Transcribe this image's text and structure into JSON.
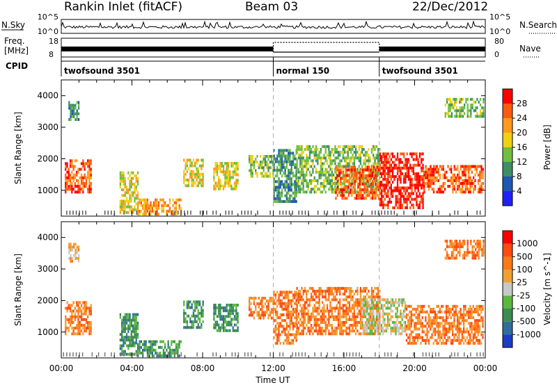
{
  "header": {
    "title": "Rankin Inlet (fitACF)",
    "beam": "Beam 03",
    "date": "22/Dec/2012"
  },
  "top_panels": {
    "nsky_label": "N.Sky",
    "nsky_ticks": [
      "10^5",
      "10^0"
    ],
    "nsearch_label": "N.Search",
    "nsearch_ticks": [
      "10^5",
      "10^0"
    ],
    "freq_label_1": "Freq.",
    "freq_label_2": "[MHz]",
    "freq_ticks": [
      "18",
      "8"
    ],
    "nave_label": "Nave",
    "nave_ticks": [
      "80",
      "0"
    ],
    "cpid_label": "CPID",
    "cpid_segments": [
      {
        "label": "twofsound 3501",
        "start_h": 0,
        "end_h": 12
      },
      {
        "label": "normal 150",
        "start_h": 12,
        "end_h": 18
      },
      {
        "label": "twofsound 3501",
        "start_h": 18,
        "end_h": 24
      }
    ]
  },
  "chart_data": [
    {
      "type": "heatmap",
      "name": "power",
      "ylabel": "Slant Range [km]",
      "ylim": [
        180,
        4500
      ],
      "yticks": [
        1000,
        2000,
        3000,
        4000
      ],
      "xlim": [
        0,
        24
      ],
      "colorbar_label": "Power [dB]",
      "colorbar_ticks": [
        "4",
        "8",
        "12",
        "16",
        "20",
        "24",
        "28"
      ],
      "colors": [
        "#2020ff",
        "#1e58b4",
        "#3f8f64",
        "#6fbf3f",
        "#f0d010",
        "#ff9a1a",
        "#ff5a10",
        "#ff0000"
      ],
      "regions": [
        {
          "t0": 0.2,
          "t1": 1.7,
          "r0": 900,
          "r1": 1900,
          "level": 6
        },
        {
          "t0": 0.4,
          "t1": 1.0,
          "r0": 3200,
          "r1": 3800,
          "level": 2
        },
        {
          "t0": 3.3,
          "t1": 4.3,
          "r0": 250,
          "r1": 1600,
          "level": 4
        },
        {
          "t0": 4.3,
          "t1": 6.8,
          "r0": 200,
          "r1": 700,
          "level": 5
        },
        {
          "t0": 6.9,
          "t1": 8.0,
          "r0": 1100,
          "r1": 2000,
          "level": 4
        },
        {
          "t0": 8.6,
          "t1": 10.0,
          "r0": 1000,
          "r1": 1900,
          "level": 4
        },
        {
          "t0": 10.6,
          "t1": 12.0,
          "r0": 1400,
          "r1": 2100,
          "level": 3
        },
        {
          "t0": 12.0,
          "t1": 13.3,
          "r0": 600,
          "r1": 2300,
          "level": 2
        },
        {
          "t0": 13.3,
          "t1": 18.0,
          "r0": 900,
          "r1": 2400,
          "level": 3
        },
        {
          "t0": 15.5,
          "t1": 18.0,
          "r0": 700,
          "r1": 1700,
          "level": 6
        },
        {
          "t0": 18.0,
          "t1": 20.5,
          "r0": 400,
          "r1": 2200,
          "level": 7
        },
        {
          "t0": 20.5,
          "t1": 23.9,
          "r0": 900,
          "r1": 1800,
          "level": 6
        },
        {
          "t0": 21.7,
          "t1": 23.9,
          "r0": 3300,
          "r1": 3900,
          "level": 3
        }
      ]
    },
    {
      "type": "heatmap",
      "name": "velocity",
      "ylabel": "Slant Range [km]",
      "ylim": [
        180,
        4500
      ],
      "yticks": [
        1000,
        2000,
        3000,
        4000
      ],
      "xlim": [
        0,
        24
      ],
      "xticks": [
        "00:00",
        "04:00",
        "08:00",
        "12:00",
        "16:00",
        "20:00",
        "00:00"
      ],
      "xlabel": "Time UT",
      "colorbar_label": "Velocity [m s^-1]",
      "colorbar_ticks": [
        "1000",
        "500",
        "100",
        "25",
        "-25",
        "-100",
        "-500",
        "-1000"
      ],
      "colors": [
        "#1c3cc8",
        "#2f6e9a",
        "#3c8c50",
        "#5ab93c",
        "#c8c8c8",
        "#f0a030",
        "#ff7818",
        "#ff4a10",
        "#ff0000"
      ],
      "regions": [
        {
          "t0": 0.2,
          "t1": 1.7,
          "r0": 900,
          "r1": 1900,
          "level": 6
        },
        {
          "t0": 0.4,
          "t1": 1.0,
          "r0": 3200,
          "r1": 3800,
          "level": 5
        },
        {
          "t0": 3.3,
          "t1": 4.3,
          "r0": 250,
          "r1": 1600,
          "level": 2
        },
        {
          "t0": 4.3,
          "t1": 6.8,
          "r0": 200,
          "r1": 700,
          "level": 2
        },
        {
          "t0": 6.9,
          "t1": 8.0,
          "r0": 1100,
          "r1": 2000,
          "level": 2
        },
        {
          "t0": 8.6,
          "t1": 10.0,
          "r0": 1000,
          "r1": 1900,
          "level": 2
        },
        {
          "t0": 10.6,
          "t1": 12.0,
          "r0": 1400,
          "r1": 2100,
          "level": 6
        },
        {
          "t0": 12.0,
          "t1": 13.3,
          "r0": 600,
          "r1": 2300,
          "level": 6
        },
        {
          "t0": 13.3,
          "t1": 18.0,
          "r0": 900,
          "r1": 2400,
          "level": 6
        },
        {
          "t0": 17.0,
          "t1": 19.5,
          "r0": 900,
          "r1": 2000,
          "level": 4
        },
        {
          "t0": 19.5,
          "t1": 23.9,
          "r0": 600,
          "r1": 1800,
          "level": 6
        },
        {
          "t0": 21.7,
          "t1": 23.9,
          "r0": 3300,
          "r1": 3900,
          "level": 6
        }
      ]
    }
  ]
}
